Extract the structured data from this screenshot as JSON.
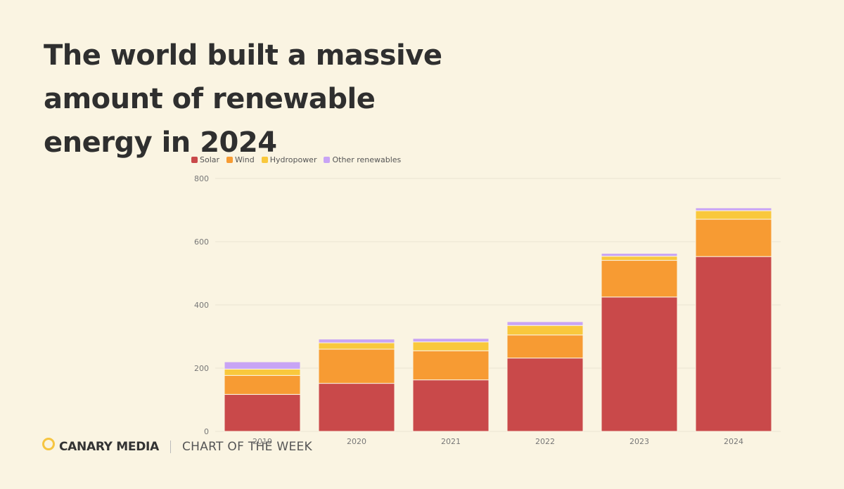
{
  "title": "The world built a massive amount of renewable energy in 2024",
  "footer": {
    "brand": "CANARY MEDIA",
    "tagline": "CHART OF THE WEEK"
  },
  "colors": {
    "background": "#faf4e2",
    "solar": "#c9494a",
    "wind": "#f79b33",
    "hydropower": "#f9c83c",
    "other": "#c8a4f5",
    "logo": "#f6c541"
  },
  "chart_data": {
    "type": "bar",
    "stacked": true,
    "categories": [
      "2019",
      "2020",
      "2021",
      "2022",
      "2023",
      "2024"
    ],
    "series": [
      {
        "name": "Solar",
        "color": "#c9494a",
        "values": [
          117,
          152,
          163,
          232,
          425,
          553
        ]
      },
      {
        "name": "Wind",
        "color": "#f79b33",
        "values": [
          60,
          108,
          92,
          73,
          116,
          118
        ]
      },
      {
        "name": "Hydropower",
        "color": "#f9c83c",
        "values": [
          20,
          20,
          28,
          30,
          13,
          27
        ]
      },
      {
        "name": "Other renewables",
        "color": "#c8a4f5",
        "values": [
          23,
          12,
          11,
          12,
          9,
          9
        ]
      }
    ],
    "yticks": [
      0,
      200,
      400,
      600,
      800
    ],
    "ylim": [
      0,
      800
    ],
    "grid": true,
    "legend_position": "top-left"
  }
}
